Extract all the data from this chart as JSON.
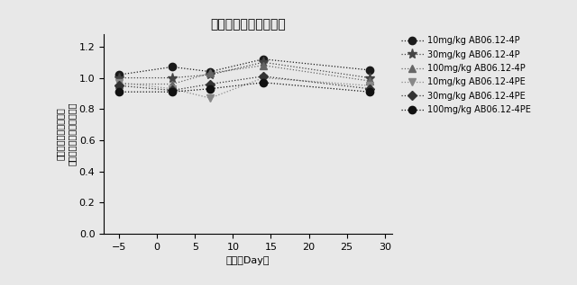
{
  "title": "正規化されたＲＢＣ数",
  "xlabel": "日数（Day）",
  "ylabel_line1": "正規化されたＲＢＣ数",
  "ylabel_line2": "（テスト／ビヒクル処置）",
  "xlim": [
    -7,
    31
  ],
  "ylim": [
    0.0,
    1.28
  ],
  "yticks": [
    0.0,
    0.2,
    0.4,
    0.6,
    0.8,
    1.0,
    1.2
  ],
  "xticks": [
    -5,
    0,
    5,
    10,
    15,
    20,
    25,
    30
  ],
  "days": [
    -5,
    2,
    7,
    14,
    28
  ],
  "series": [
    {
      "label": "10mg/kg AB06.12-4P",
      "values": [
        1.02,
        1.07,
        1.04,
        1.12,
        1.05
      ],
      "marker": "o",
      "linestyle": "dotted",
      "color": "#1a1a1a",
      "markersize": 6
    },
    {
      "label": "30mg/kg AB06.12-4P",
      "values": [
        1.0,
        1.0,
        1.02,
        1.1,
        1.0
      ],
      "marker": "*",
      "linestyle": "dotted",
      "color": "#444444",
      "markersize": 8
    },
    {
      "label": "100mg/kg AB06.12-4P",
      "values": [
        0.96,
        0.96,
        1.03,
        1.08,
        0.98
      ],
      "marker": "^",
      "linestyle": "dotted",
      "color": "#666666",
      "markersize": 6
    },
    {
      "label": "10mg/kg AB06.12-4PE",
      "values": [
        0.97,
        0.93,
        0.87,
        1.0,
        0.95
      ],
      "marker": "v",
      "linestyle": "dotted",
      "color": "#888888",
      "markersize": 6
    },
    {
      "label": "30mg/kg AB06.12-4PE",
      "values": [
        0.95,
        0.92,
        0.96,
        1.01,
        0.93
      ],
      "marker": "D",
      "linestyle": "dotted",
      "color": "#333333",
      "markersize": 5
    },
    {
      "label": "100mg/kg AB06.12-4PE",
      "values": [
        0.91,
        0.91,
        0.93,
        0.97,
        0.91
      ],
      "marker": "o",
      "linestyle": "dotted",
      "color": "#111111",
      "markersize": 6
    }
  ],
  "background_color": "#e8e8e8",
  "linewidth": 0.9,
  "title_fontsize": 10,
  "label_fontsize": 8,
  "tick_fontsize": 8,
  "legend_fontsize": 7
}
